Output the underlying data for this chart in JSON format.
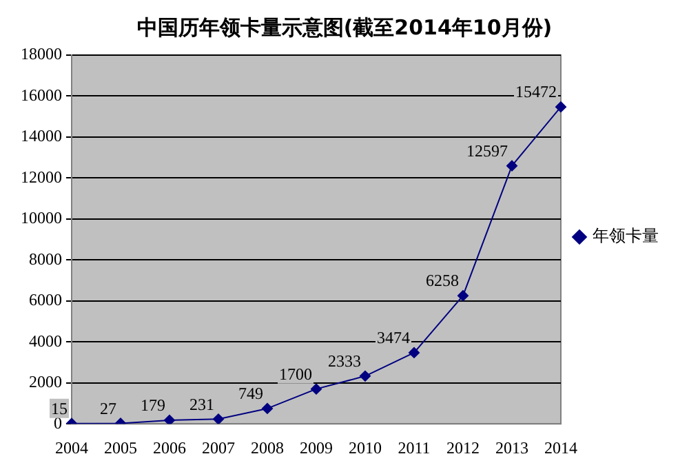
{
  "chart_data": {
    "type": "line",
    "title": "中国历年领卡量示意图(截至2014年10月份)",
    "categories": [
      "2004",
      "2005",
      "2006",
      "2007",
      "2008",
      "2009",
      "2010",
      "2011",
      "2012",
      "2013",
      "2014"
    ],
    "series": [
      {
        "name": "年领卡量",
        "color": "#000080",
        "values": [
          15,
          27,
          179,
          231,
          749,
          1700,
          2333,
          3474,
          6258,
          12597,
          15472
        ]
      }
    ],
    "ylim": [
      0,
      18000
    ],
    "yticks": [
      0,
      2000,
      4000,
      6000,
      8000,
      10000,
      12000,
      14000,
      16000,
      18000
    ],
    "grid": "y",
    "legend": "right",
    "marker": "diamond",
    "line_style": "solid",
    "data_labels": true
  }
}
